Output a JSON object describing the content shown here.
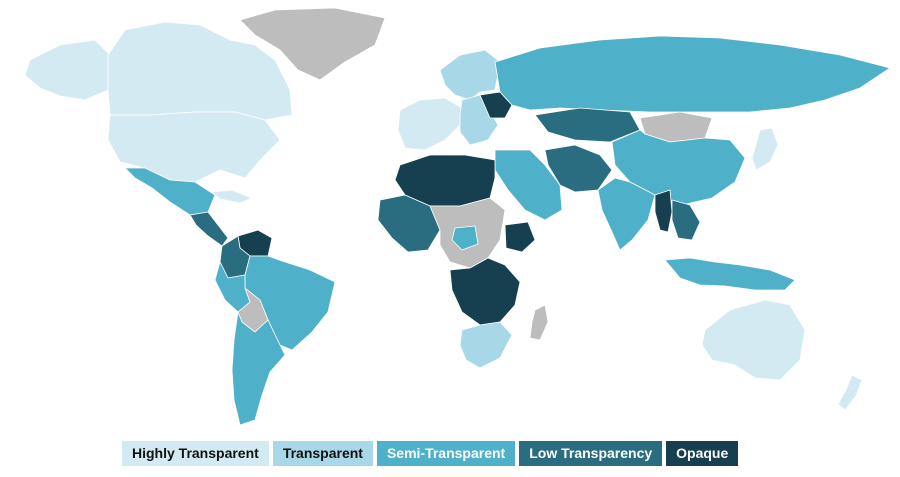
{
  "colors": {
    "highly_transparent": "#d3eaf2",
    "transparent": "#a8d8e8",
    "semi_transparent": "#4eb0c9",
    "low_transparency": "#2a6d80",
    "opaque": "#16404f",
    "no_data": "#bdbdbd",
    "background": "#ffffff"
  },
  "map": {
    "type": "choropleth-world",
    "regions": [
      {
        "name": "canada",
        "category": "highly_transparent"
      },
      {
        "name": "alaska",
        "category": "highly_transparent"
      },
      {
        "name": "united-states",
        "category": "highly_transparent"
      },
      {
        "name": "greenland",
        "category": "no_data"
      },
      {
        "name": "mexico",
        "category": "semi_transparent"
      },
      {
        "name": "central-america",
        "category": "low_transparency"
      },
      {
        "name": "cuba",
        "category": "highly_transparent"
      },
      {
        "name": "venezuela",
        "category": "opaque"
      },
      {
        "name": "colombia",
        "category": "low_transparency"
      },
      {
        "name": "brazil",
        "category": "semi_transparent"
      },
      {
        "name": "peru",
        "category": "semi_transparent"
      },
      {
        "name": "bolivia",
        "category": "no_data"
      },
      {
        "name": "argentina-chile",
        "category": "semi_transparent"
      },
      {
        "name": "western-europe",
        "category": "highly_transparent"
      },
      {
        "name": "scandinavia",
        "category": "transparent"
      },
      {
        "name": "eastern-europe",
        "category": "transparent"
      },
      {
        "name": "belarus",
        "category": "opaque"
      },
      {
        "name": "russia",
        "category": "semi_transparent"
      },
      {
        "name": "kazakhstan",
        "category": "low_transparency"
      },
      {
        "name": "mongolia",
        "category": "no_data"
      },
      {
        "name": "china",
        "category": "semi_transparent"
      },
      {
        "name": "japan",
        "category": "highly_transparent"
      },
      {
        "name": "middle-east",
        "category": "semi_transparent"
      },
      {
        "name": "iran",
        "category": "low_transparency"
      },
      {
        "name": "india",
        "category": "semi_transparent"
      },
      {
        "name": "myanmar",
        "category": "opaque"
      },
      {
        "name": "southeast-asia",
        "category": "low_transparency"
      },
      {
        "name": "indonesia",
        "category": "semi_transparent"
      },
      {
        "name": "australia",
        "category": "highly_transparent"
      },
      {
        "name": "new-zealand",
        "category": "highly_transparent"
      },
      {
        "name": "north-africa",
        "category": "opaque"
      },
      {
        "name": "west-africa",
        "category": "low_transparency"
      },
      {
        "name": "central-africa",
        "category": "no_data"
      },
      {
        "name": "nigeria",
        "category": "semi_transparent"
      },
      {
        "name": "ethiopia",
        "category": "opaque"
      },
      {
        "name": "southern-africa",
        "category": "opaque"
      },
      {
        "name": "south-africa",
        "category": "transparent"
      },
      {
        "name": "madagascar",
        "category": "no_data"
      }
    ]
  },
  "legend": [
    {
      "label": "Highly Transparent",
      "category": "highly_transparent",
      "text_color": "#111111"
    },
    {
      "label": "Transparent",
      "category": "transparent",
      "text_color": "#111111"
    },
    {
      "label": "Semi-Transparent",
      "category": "semi_transparent",
      "text_color": "#ffffff"
    },
    {
      "label": "Low Transparency",
      "category": "low_transparency",
      "text_color": "#ffffff"
    },
    {
      "label": "Opaque",
      "category": "opaque",
      "text_color": "#ffffff"
    }
  ]
}
